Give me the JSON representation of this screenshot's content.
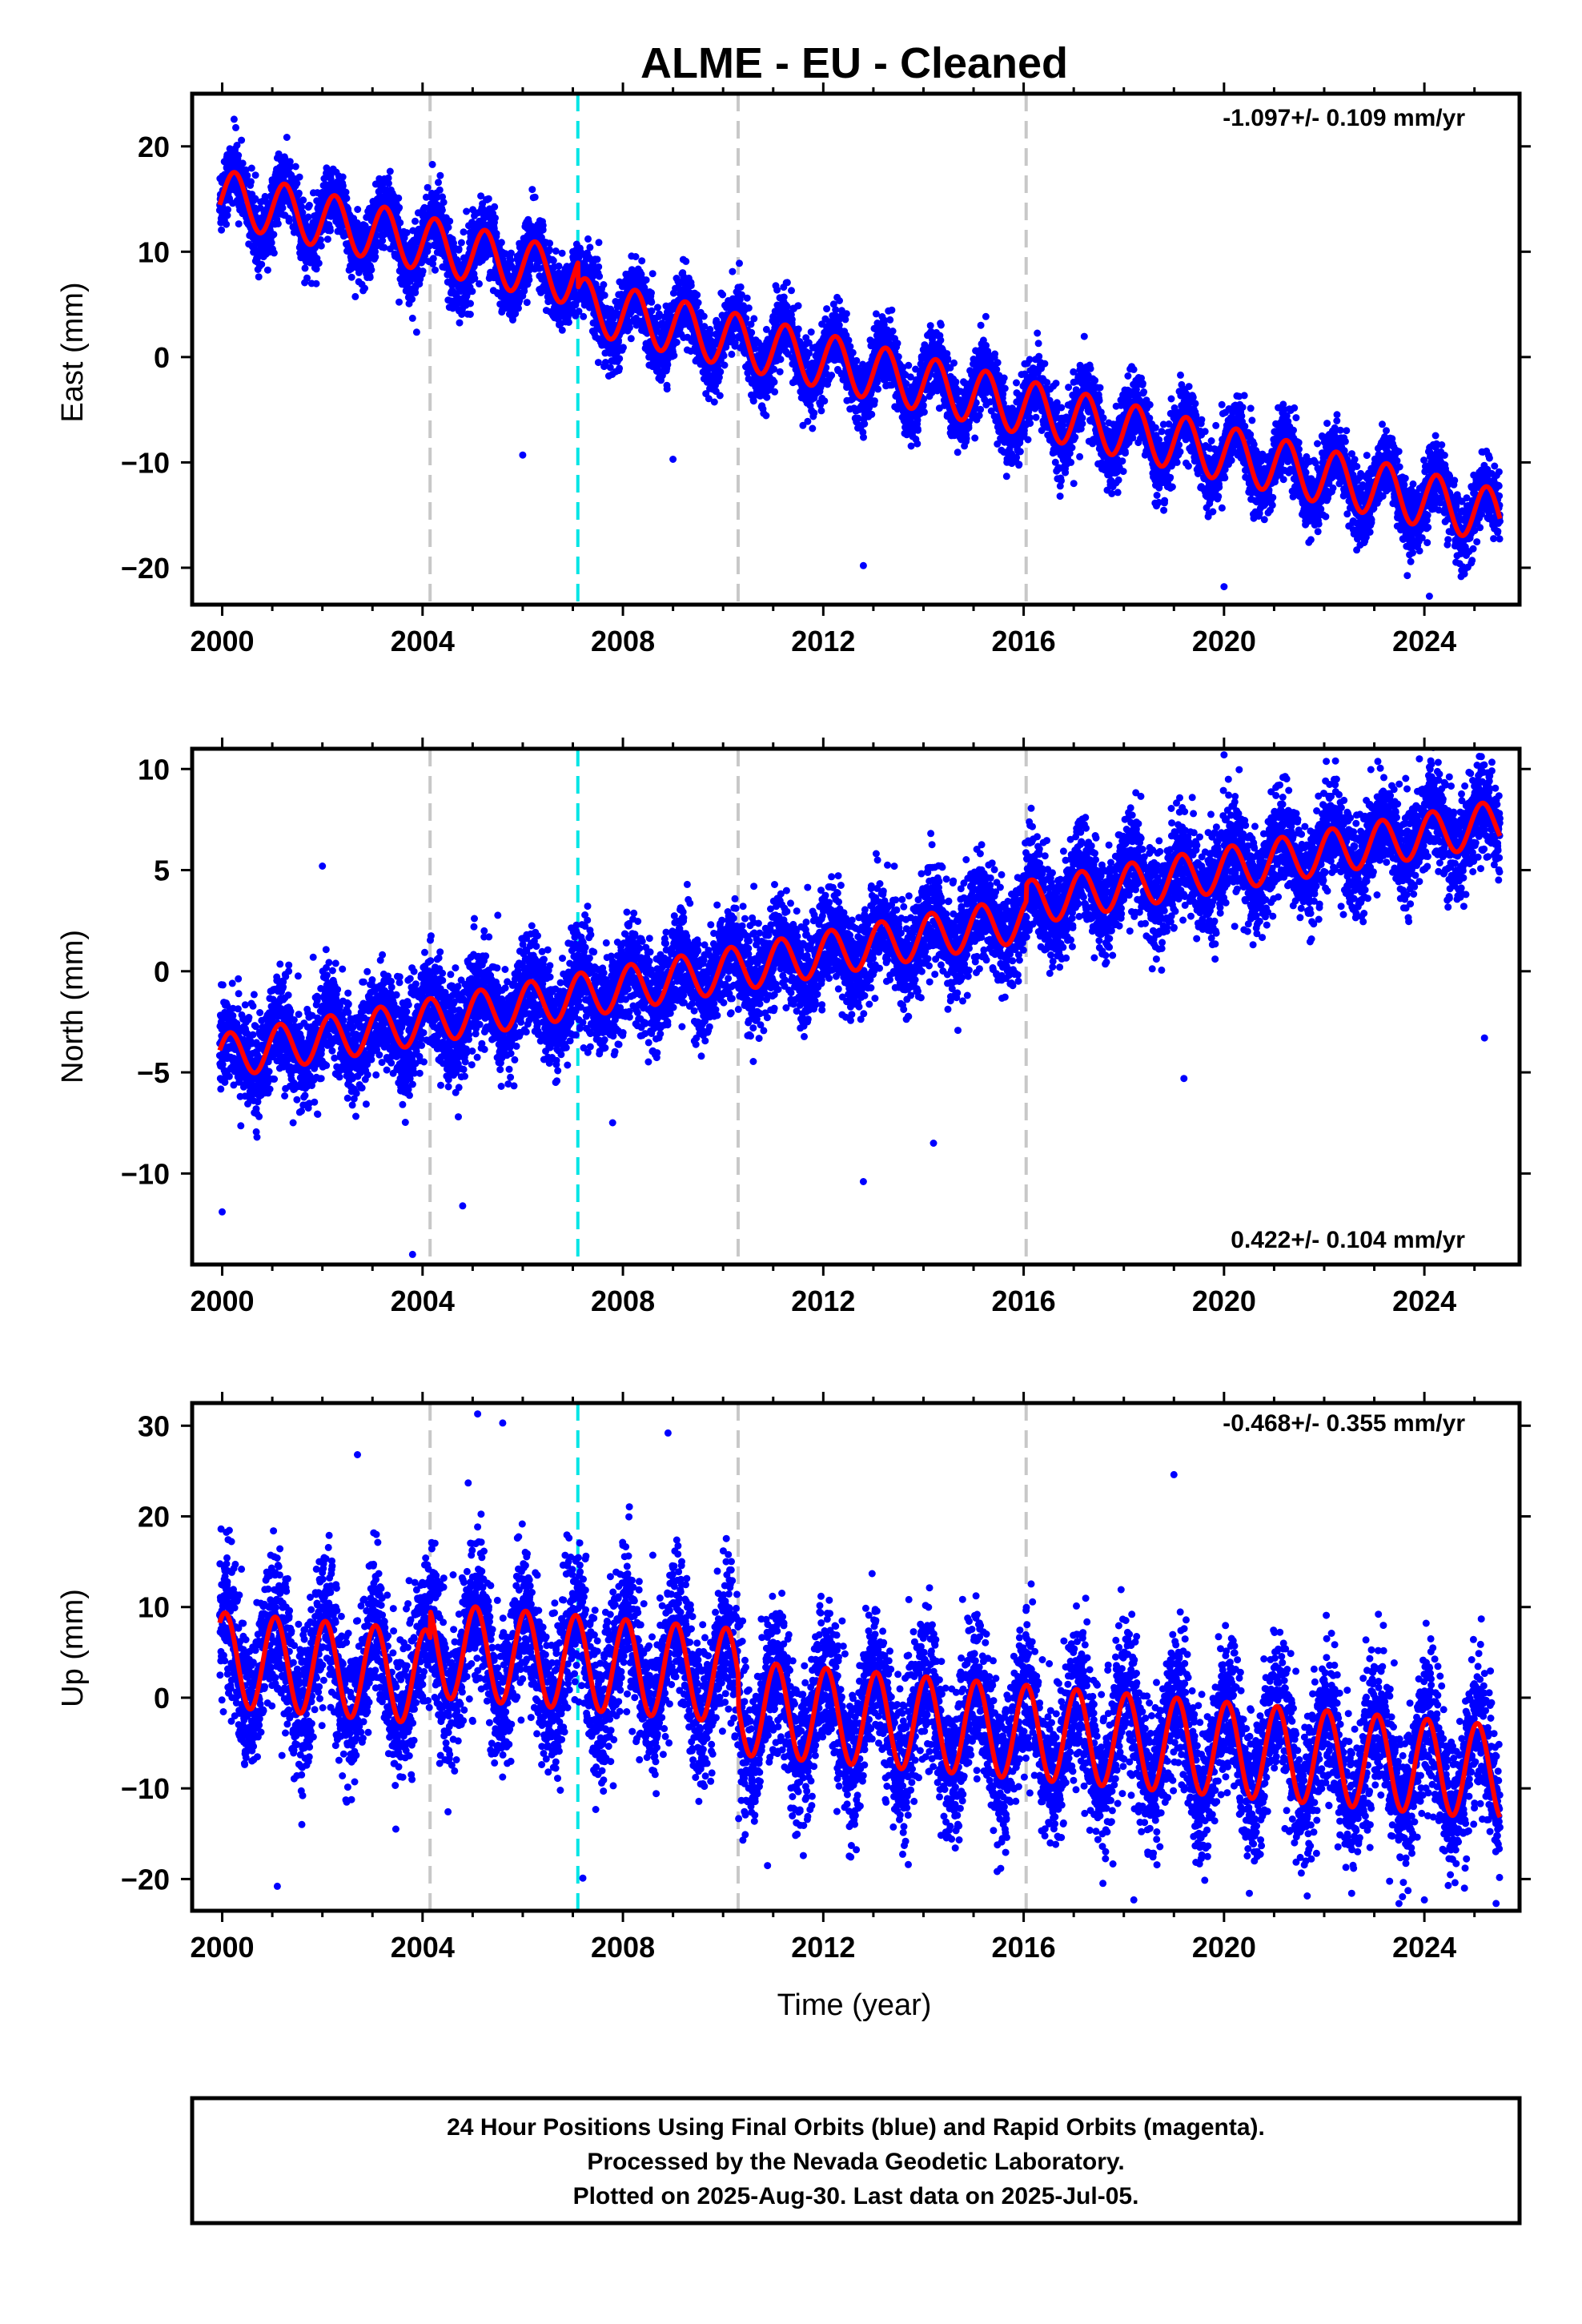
{
  "title": "ALME  - EU - Cleaned",
  "colors": {
    "points": "#0000ff",
    "model": "#ff0000",
    "equipment_change": "#c8c8c8",
    "earthquake_line": "#00e5e5",
    "frame": "#000000"
  },
  "footer": {
    "line1": "24 Hour Positions Using Final Orbits (blue) and Rapid Orbits (magenta).",
    "line2": "Processed by the Nevada Geodetic Laboratory.",
    "line3": "Plotted on 2025-Aug-30. Last data on 2025-Jul-05."
  },
  "chart_data": [
    {
      "type": "scatter",
      "ylabel": "East (mm)",
      "xlabel": "",
      "xlim": [
        1999.4,
        2025.9
      ],
      "ylim": [
        -23.5,
        25
      ],
      "xticks": [
        2000,
        2004,
        2008,
        2012,
        2016,
        2020,
        2024
      ],
      "yticks": [
        -20,
        -10,
        0,
        10,
        20
      ],
      "rate_label": "-1.097+/- 0.109 mm/yr",
      "rate_position": "top-right",
      "vlines_gray": [
        2004.15,
        2010.3,
        2016.05
      ],
      "vlines_cyan": [
        2007.1
      ],
      "model": {
        "offset_at_2000": 15.2,
        "slope_mm_per_yr": -1.097,
        "annual_amplitude": 2.6,
        "annual_phase": 0.0,
        "steps": [
          {
            "t": 2007.1,
            "dy": -2.4
          }
        ]
      },
      "scatter_noise_mm": 1.6,
      "outliers": [
        [
          2006.0,
          -9.3
        ],
        [
          2009.0,
          -9.7
        ],
        [
          2012.8,
          -19.8
        ],
        [
          2017.0,
          -12.0
        ],
        [
          2020.0,
          -21.8
        ],
        [
          2024.1,
          -22.7
        ],
        [
          2024.8,
          -20.2
        ]
      ]
    },
    {
      "type": "scatter",
      "ylabel": "North (mm)",
      "xlabel": "",
      "xlim": [
        1999.4,
        2025.9
      ],
      "ylim": [
        -14.5,
        11
      ],
      "xticks": [
        2000,
        2004,
        2008,
        2012,
        2016,
        2020,
        2024
      ],
      "yticks": [
        -10,
        -5,
        0,
        5,
        10
      ],
      "rate_label": "0.422+/- 0.104 mm/yr",
      "rate_position": "bottom-right",
      "vlines_gray": [
        2004.15,
        2010.3,
        2016.05
      ],
      "vlines_cyan": [
        2007.1
      ],
      "model": {
        "offset_at_2000": -4.2,
        "slope_mm_per_yr": 0.422,
        "annual_amplitude": 1.1,
        "annual_phase": 0.6,
        "steps": [
          {
            "t": 2016.05,
            "dy": 0.8
          }
        ]
      },
      "scatter_noise_mm": 1.2,
      "outliers": [
        [
          2000.0,
          -11.9
        ],
        [
          2002.0,
          5.2
        ],
        [
          2003.8,
          -14.0
        ],
        [
          2004.8,
          -11.6
        ],
        [
          2012.8,
          -10.4
        ],
        [
          2014.2,
          -8.5
        ],
        [
          2019.2,
          -5.3
        ],
        [
          2020.0,
          10.7
        ],
        [
          2023.9,
          10.5
        ],
        [
          2025.2,
          -3.3
        ]
      ]
    },
    {
      "type": "scatter",
      "ylabel": "Up (mm)",
      "xlabel": "Time (year)",
      "xlim": [
        1999.4,
        2025.9
      ],
      "ylim": [
        -23.5,
        32.5
      ],
      "xticks": [
        2000,
        2004,
        2008,
        2012,
        2016,
        2020,
        2024
      ],
      "yticks": [
        -20,
        -10,
        0,
        10,
        20,
        30
      ],
      "rate_label": "-0.468+/- 0.355 mm/yr",
      "rate_position": "top-right",
      "vlines_gray": [
        2004.15,
        2010.3,
        2016.05
      ],
      "vlines_cyan": [
        2007.1
      ],
      "model": {
        "offset_at_2000": 4.2,
        "slope_mm_per_yr": -0.468,
        "annual_amplitude": 5.2,
        "annual_phase": 1.2,
        "steps": [
          {
            "t": 2004.15,
            "dy": 3.0
          },
          {
            "t": 2010.3,
            "dy": -3.5
          }
        ]
      },
      "scatter_noise_mm": 4.0,
      "outliers": [
        [
          2001.1,
          -20.8
        ],
        [
          2002.7,
          26.8
        ],
        [
          2005.1,
          31.3
        ],
        [
          2005.6,
          30.3
        ],
        [
          2007.2,
          -19.9
        ],
        [
          2008.9,
          29.2
        ],
        [
          2018.2,
          -22.3
        ],
        [
          2019.0,
          24.6
        ],
        [
          2024.0,
          -22.3
        ],
        [
          2024.8,
          -21.0
        ]
      ]
    }
  ]
}
